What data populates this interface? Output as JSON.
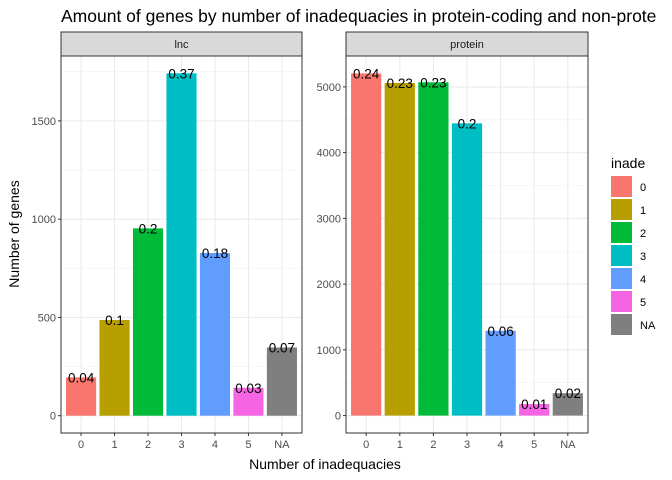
{
  "chart_data": {
    "type": "bar",
    "title": "Amount of genes by number of inadequacies in protein-coding and non-prote",
    "xlabel": "Number of inadequacies",
    "ylabel": "Number of genes",
    "categories": [
      "0",
      "1",
      "2",
      "3",
      "4",
      "5",
      "NA"
    ],
    "legend": {
      "title": "inade",
      "placement": "right",
      "entries": [
        {
          "label": "0",
          "color": "#F8766D"
        },
        {
          "label": "1",
          "color": "#B79F00"
        },
        {
          "label": "2",
          "color": "#00BA38"
        },
        {
          "label": "3",
          "color": "#00BFC4"
        },
        {
          "label": "4",
          "color": "#619CFF"
        },
        {
          "label": "5",
          "color": "#F564E3"
        },
        {
          "label": "NA",
          "color": "#7F7F7F"
        }
      ]
    },
    "grid": true,
    "panels": [
      {
        "strip": "lnc",
        "values": [
          195,
          487,
          953,
          1742,
          828,
          142,
          347
        ],
        "labels": [
          "0.04",
          "0.1",
          "0.2",
          "0.37",
          "0.18",
          "0.03",
          "0.07"
        ],
        "ylim": [
          -88,
          1830
        ],
        "yticks": [
          0,
          500,
          1000,
          1500
        ]
      },
      {
        "strip": "protein",
        "values": [
          5205,
          5060,
          5070,
          4445,
          1290,
          175,
          340
        ],
        "labels": [
          "0.24",
          "0.23",
          "0.23",
          "0.2",
          "0.06",
          "0.01",
          "0.02"
        ],
        "ylim": [
          -265,
          5470
        ],
        "yticks": [
          0,
          1000,
          2000,
          3000,
          4000,
          5000
        ]
      }
    ]
  }
}
